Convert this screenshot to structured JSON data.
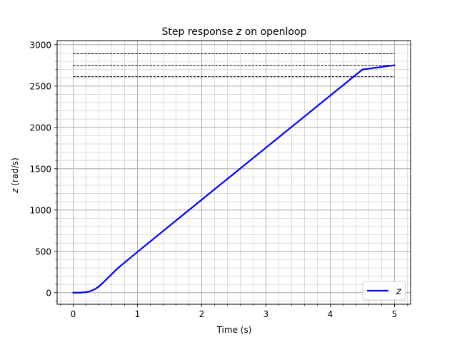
{
  "chart_data": {
    "type": "line",
    "title": "Step response z on openloop",
    "title_prefix": "Step response ",
    "title_var": "z",
    "title_suffix": " on openloop",
    "xlabel": "Time (s)",
    "ylabel": "z (rad/s)",
    "ylabel_var": "z",
    "ylabel_unit": " (rad/s)",
    "xlim": [
      -0.25,
      5.25
    ],
    "ylim": [
      -140,
      3050
    ],
    "xticks": [
      0,
      1,
      2,
      3,
      4,
      5
    ],
    "xtick_labels": [
      "0",
      "1",
      "2",
      "3",
      "4",
      "5"
    ],
    "yticks": [
      0,
      500,
      1000,
      1500,
      2000,
      2500,
      3000
    ],
    "ytick_labels": [
      "0",
      "500",
      "1000",
      "1500",
      "2000",
      "2500",
      "3000"
    ],
    "x_minor_step": 0.2,
    "y_minor_step": 100,
    "grid": true,
    "legend_position": "lower-right",
    "series": [
      {
        "name": "z",
        "color": "#0000ff",
        "x": [
          0,
          0.1,
          0.2,
          0.25,
          0.3,
          0.35,
          0.4,
          0.45,
          0.5,
          0.6,
          0.7,
          0.8,
          1,
          1.5,
          2,
          2.5,
          3,
          3.5,
          4,
          4.5,
          5
        ],
        "y": [
          0,
          0,
          6,
          14,
          28,
          48,
          75,
          110,
          148,
          225,
          300,
          365,
          493,
          810,
          1125,
          1440,
          1755,
          2070,
          2385,
          2700,
          2752
        ]
      }
    ],
    "reference_lines": {
      "color": "#000000",
      "style": "dashed",
      "x_range": [
        0,
        5
      ],
      "y_values": [
        2890,
        2752,
        2614
      ]
    }
  }
}
